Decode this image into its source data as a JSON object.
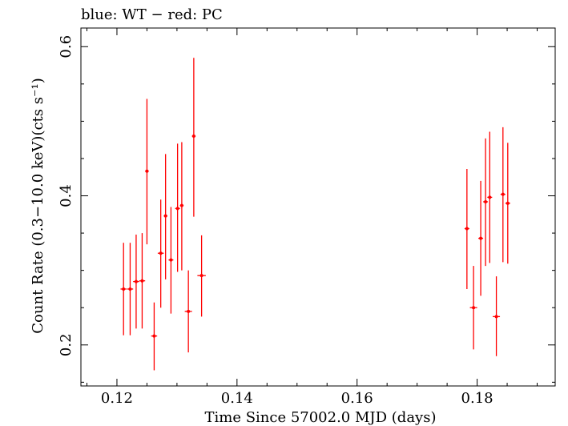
{
  "chart_data": {
    "type": "scatter",
    "title": "blue: WT − red: PC",
    "xlabel": "Time Since 57002.0 MJD (days)",
    "ylabel": "Count Rate (0.3−10.0 keV)(cts s⁻¹)",
    "xlim": [
      0.114,
      0.193
    ],
    "ylim": [
      0.145,
      0.625
    ],
    "xticks": [
      0.12,
      0.14,
      0.16,
      0.18
    ],
    "xtick_labels": [
      "0.12",
      "0.14",
      "0.16",
      "0.18"
    ],
    "yticks": [
      0.2,
      0.4,
      0.6
    ],
    "ytick_labels": [
      "0.2",
      "0.4",
      "0.6"
    ],
    "grid": false,
    "series": [
      {
        "color": "#ff0000",
        "points": [
          {
            "x": 0.1211,
            "y": 0.275,
            "xerr": 0.0005,
            "ylo": 0.213,
            "yhi": 0.337
          },
          {
            "x": 0.1222,
            "y": 0.275,
            "xerr": 0.0005,
            "ylo": 0.213,
            "yhi": 0.337
          },
          {
            "x": 0.1232,
            "y": 0.285,
            "xerr": 0.0005,
            "ylo": 0.222,
            "yhi": 0.348
          },
          {
            "x": 0.1242,
            "y": 0.286,
            "xerr": 0.0005,
            "ylo": 0.222,
            "yhi": 0.35
          },
          {
            "x": 0.125,
            "y": 0.433,
            "xerr": 0.0003,
            "ylo": 0.335,
            "yhi": 0.53
          },
          {
            "x": 0.1262,
            "y": 0.212,
            "xerr": 0.0005,
            "ylo": 0.166,
            "yhi": 0.257
          },
          {
            "x": 0.1273,
            "y": 0.323,
            "xerr": 0.0005,
            "ylo": 0.25,
            "yhi": 0.395
          },
          {
            "x": 0.1281,
            "y": 0.373,
            "xerr": 0.0003,
            "ylo": 0.288,
            "yhi": 0.456
          },
          {
            "x": 0.129,
            "y": 0.314,
            "xerr": 0.0004,
            "ylo": 0.242,
            "yhi": 0.385
          },
          {
            "x": 0.1301,
            "y": 0.383,
            "xerr": 0.0004,
            "ylo": 0.298,
            "yhi": 0.47
          },
          {
            "x": 0.1308,
            "y": 0.387,
            "xerr": 0.0003,
            "ylo": 0.3,
            "yhi": 0.472
          },
          {
            "x": 0.1319,
            "y": 0.245,
            "xerr": 0.0006,
            "ylo": 0.19,
            "yhi": 0.3
          },
          {
            "x": 0.1328,
            "y": 0.48,
            "xerr": 0.0003,
            "ylo": 0.372,
            "yhi": 0.585
          },
          {
            "x": 0.1341,
            "y": 0.293,
            "xerr": 0.0007,
            "ylo": 0.238,
            "yhi": 0.347
          },
          {
            "x": 0.1783,
            "y": 0.356,
            "xerr": 0.0004,
            "ylo": 0.275,
            "yhi": 0.436
          },
          {
            "x": 0.1794,
            "y": 0.25,
            "xerr": 0.0006,
            "ylo": 0.194,
            "yhi": 0.306
          },
          {
            "x": 0.1806,
            "y": 0.343,
            "xerr": 0.0004,
            "ylo": 0.266,
            "yhi": 0.42
          },
          {
            "x": 0.1814,
            "y": 0.392,
            "xerr": 0.0004,
            "ylo": 0.306,
            "yhi": 0.477
          },
          {
            "x": 0.1821,
            "y": 0.398,
            "xerr": 0.0004,
            "ylo": 0.31,
            "yhi": 0.486
          },
          {
            "x": 0.1832,
            "y": 0.238,
            "xerr": 0.0006,
            "ylo": 0.185,
            "yhi": 0.292
          },
          {
            "x": 0.1843,
            "y": 0.402,
            "xerr": 0.0004,
            "ylo": 0.311,
            "yhi": 0.492
          },
          {
            "x": 0.1851,
            "y": 0.39,
            "xerr": 0.0004,
            "ylo": 0.309,
            "yhi": 0.471
          }
        ]
      }
    ]
  }
}
